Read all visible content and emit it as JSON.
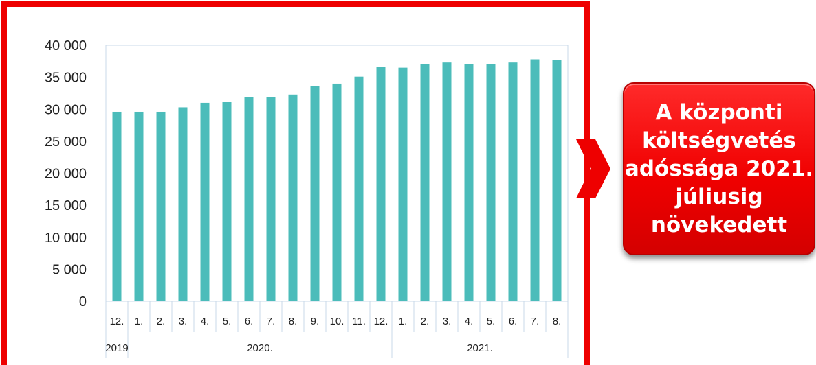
{
  "chart_data": {
    "type": "bar",
    "categories": [
      "12.",
      "1.",
      "2.",
      "3.",
      "4.",
      "5.",
      "6.",
      "7.",
      "8.",
      "9.",
      "10.",
      "11.",
      "12.",
      "1.",
      "2.",
      "3.",
      "4.",
      "5.",
      "6.",
      "7.",
      "8."
    ],
    "year_groups": [
      {
        "label": "2019",
        "count": 1
      },
      {
        "label": "2020.",
        "count": 12
      },
      {
        "label": "2021.",
        "count": 8
      }
    ],
    "values": [
      29600,
      29600,
      29600,
      30300,
      31000,
      31200,
      31900,
      31900,
      32300,
      33600,
      34000,
      35100,
      36600,
      36500,
      37000,
      37300,
      37000,
      37100,
      37300,
      37800,
      37700
    ],
    "y_ticks": [
      "0",
      "5 000",
      "10 000",
      "15 000",
      "20 000",
      "25 000",
      "30 000",
      "35 000",
      "40 000"
    ],
    "ylim": [
      0,
      40000
    ],
    "bar_color": "#4bbcba",
    "grid": false
  },
  "callout": {
    "lines": [
      "A központi",
      "költségvetés",
      "adóssága 2021.",
      "júliusig",
      "növekedett"
    ],
    "color": "#f00000"
  },
  "frame_color": "#ee0000"
}
